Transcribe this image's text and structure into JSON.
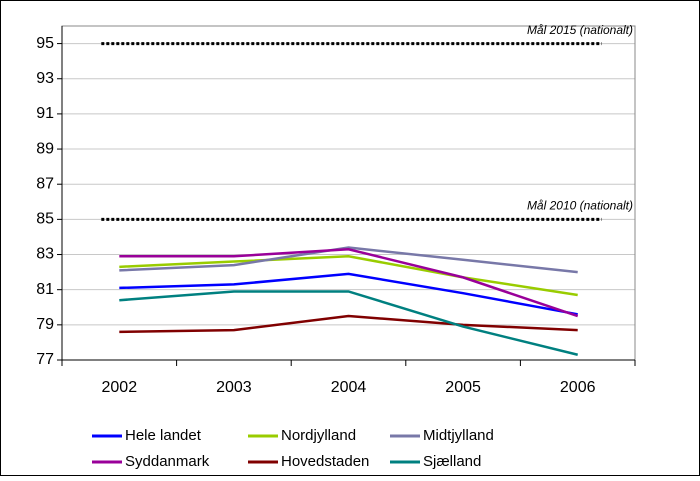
{
  "chart_data": {
    "type": "line",
    "categories": [
      "2002",
      "2003",
      "2004",
      "2005",
      "2006"
    ],
    "series": [
      {
        "name": "Hele landet",
        "color": "#0000ff",
        "values": [
          81.1,
          81.3,
          81.9,
          80.8,
          79.6
        ]
      },
      {
        "name": "Nordjylland",
        "color": "#99cc00",
        "values": [
          82.3,
          82.6,
          82.9,
          81.7,
          80.7
        ]
      },
      {
        "name": "Midtjylland",
        "color": "#7878a8",
        "values": [
          82.1,
          82.4,
          83.4,
          82.7,
          82.0
        ]
      },
      {
        "name": "Syddanmark",
        "color": "#990099",
        "values": [
          82.9,
          82.9,
          83.3,
          81.7,
          79.5
        ]
      },
      {
        "name": "Hovedstaden",
        "color": "#800000",
        "values": [
          78.6,
          78.7,
          79.5,
          79.0,
          78.7
        ]
      },
      {
        "name": "Sjælland",
        "color": "#008080",
        "values": [
          80.4,
          80.9,
          80.9,
          78.9,
          77.3
        ]
      }
    ],
    "targets": [
      {
        "label": "Mål 2015 (nationalt)",
        "value": 95
      },
      {
        "label": "Mål 2010 (nationalt)",
        "value": 85
      }
    ],
    "ylim": [
      77,
      96
    ],
    "yticks": [
      77,
      79,
      81,
      83,
      85,
      87,
      89,
      91,
      93,
      95
    ],
    "grid": true
  }
}
